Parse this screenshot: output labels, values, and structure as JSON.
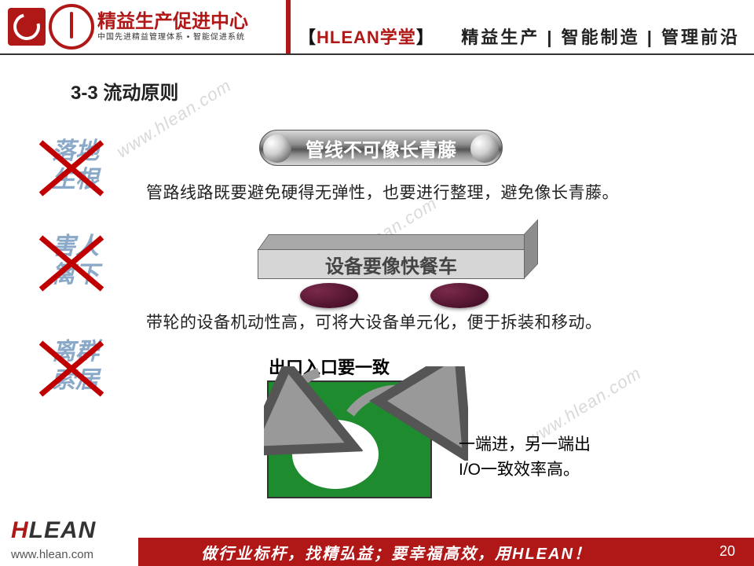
{
  "header": {
    "logo_title": "精益生产促进中心",
    "logo_sub": "中国先进精益管理体系 • 智能促进系统",
    "center_prefix": "【",
    "center_red": "HLEAN",
    "center_black": "学堂",
    "center_suffix": "】",
    "right": "精益生产 | 智能制造 | 管理前沿"
  },
  "section_title": "3-3 流动原则",
  "left_items": [
    "落地\n生根",
    "害人\n篱下",
    "离群\n索居"
  ],
  "pill_label": "管线不可像长青藤",
  "text1": "管路线路既要避免硬得无弹性，也要进行整理，避免像长青藤。",
  "cart_label": "设备要像快餐车",
  "text2": "带轮的设备机动性高，可将大设备单元化，便于拆装和移动。",
  "io_title": "出口入口要一致",
  "io_side1": "一端进，另一端出",
  "io_side2": "I/O一致效率高。",
  "watermark": "www.hlean.com",
  "footer": {
    "brand_h": "H",
    "brand_rest": "LEAN",
    "url": "www.hlean.com",
    "slogan": "做行业标杆，找精弘益；要幸福高效，用HLEAN！",
    "page": "20"
  },
  "colors": {
    "accent": "#b01818",
    "green": "#1f8b2f",
    "wheel": "#3a0820",
    "left_text": "#8aa9c9"
  }
}
